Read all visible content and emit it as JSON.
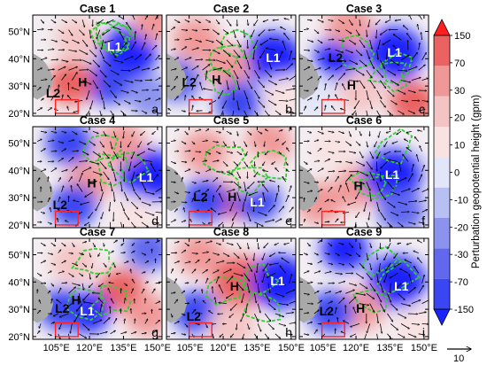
{
  "figure": {
    "colorbar_label": "Perturbation geopotential height (gpm)",
    "vector_key_label": "10"
  },
  "chart_data": {
    "type": "heatmap",
    "panels": [
      {
        "title": "Case 1",
        "letter": "a",
        "labels": [
          {
            "text": "L1",
            "lon": 131,
            "lat": 44,
            "color": "#ffffff"
          },
          {
            "text": "H",
            "lon": 117,
            "lat": 31,
            "color": "#000000"
          },
          {
            "text": "L2",
            "lon": 104,
            "lat": 27,
            "color": "#000000"
          }
        ],
        "blobs": [
          {
            "lon": 137,
            "lat": 42,
            "value": -150
          },
          {
            "lon": 128,
            "lat": 31,
            "value": -60
          },
          {
            "lon": 115,
            "lat": 47,
            "value": 30
          },
          {
            "lon": 112,
            "lat": 31,
            "value": 90
          },
          {
            "lon": 149,
            "lat": 54,
            "value": 60
          },
          {
            "lon": 147,
            "lat": 26,
            "value": -10
          }
        ]
      },
      {
        "title": "Case 2",
        "letter": "b",
        "labels": [
          {
            "text": "L1",
            "lon": 142,
            "lat": 40,
            "color": "#ffffff"
          },
          {
            "text": "H",
            "lon": 117,
            "lat": 32,
            "color": "#000000"
          },
          {
            "text": "L2",
            "lon": 105,
            "lat": 31,
            "color": "#000000"
          }
        ],
        "blobs": [
          {
            "lon": 142,
            "lat": 40,
            "value": -150
          },
          {
            "lon": 108,
            "lat": 47,
            "value": 60
          },
          {
            "lon": 122,
            "lat": 37,
            "value": 40
          },
          {
            "lon": 100,
            "lat": 32,
            "value": -20
          },
          {
            "lon": 127,
            "lat": 24,
            "value": -30
          },
          {
            "lon": 147,
            "lat": 26,
            "value": 20
          }
        ]
      },
      {
        "title": "Case 3",
        "letter": "c",
        "labels": [
          {
            "text": "L1",
            "lon": 137,
            "lat": 42,
            "color": "#ffffff"
          },
          {
            "text": "L2",
            "lon": 111,
            "lat": 40,
            "color": "#000000"
          },
          {
            "text": "H",
            "lon": 118,
            "lat": 30,
            "color": "#000000"
          }
        ],
        "blobs": [
          {
            "lon": 137,
            "lat": 42,
            "value": -150
          },
          {
            "lon": 112,
            "lat": 40,
            "value": -80
          },
          {
            "lon": 117,
            "lat": 52,
            "value": 60
          },
          {
            "lon": 122,
            "lat": 28,
            "value": 30
          },
          {
            "lon": 145,
            "lat": 24,
            "value": 80
          },
          {
            "lon": 102,
            "lat": 26,
            "value": 10
          }
        ]
      },
      {
        "title": "Case 4",
        "letter": "d",
        "labels": [
          {
            "text": "H",
            "lon": 121,
            "lat": 35,
            "color": "#000000"
          },
          {
            "text": "L1",
            "lon": 145,
            "lat": 37,
            "color": "#ffffff"
          },
          {
            "text": "L2",
            "lon": 107,
            "lat": 27,
            "color": "#000000"
          }
        ],
        "blobs": [
          {
            "lon": 120,
            "lat": 36,
            "value": 70
          },
          {
            "lon": 146,
            "lat": 38,
            "value": -150
          },
          {
            "lon": 113,
            "lat": 27,
            "value": -60
          },
          {
            "lon": 111,
            "lat": 50,
            "value": -50
          },
          {
            "lon": 134,
            "lat": 50,
            "value": 40
          },
          {
            "lon": 140,
            "lat": 23,
            "value": 20
          }
        ]
      },
      {
        "title": "Case 5",
        "letter": "e",
        "labels": [
          {
            "text": "H",
            "lon": 124,
            "lat": 30,
            "color": "#000000"
          },
          {
            "text": "L1",
            "lon": 135,
            "lat": 28,
            "color": "#ffffff"
          },
          {
            "text": "L2",
            "lon": 110,
            "lat": 30,
            "color": "#000000"
          }
        ],
        "blobs": [
          {
            "lon": 124,
            "lat": 30,
            "value": 80
          },
          {
            "lon": 135,
            "lat": 29,
            "value": -60
          },
          {
            "lon": 112,
            "lat": 29,
            "value": -40
          },
          {
            "lon": 112,
            "lat": 47,
            "value": 60
          },
          {
            "lon": 140,
            "lat": 50,
            "value": 70
          },
          {
            "lon": 130,
            "lat": 40,
            "value": 20
          }
        ]
      },
      {
        "title": "Case 6",
        "letter": "f",
        "labels": [
          {
            "text": "H",
            "lon": 121,
            "lat": 34,
            "color": "#000000"
          },
          {
            "text": "L1",
            "lon": 136,
            "lat": 38,
            "color": "#ffffff"
          }
        ],
        "blobs": [
          {
            "lon": 121,
            "lat": 34,
            "value": 60
          },
          {
            "lon": 136,
            "lat": 38,
            "value": -150
          },
          {
            "lon": 110,
            "lat": 48,
            "value": 20
          },
          {
            "lon": 140,
            "lat": 25,
            "value": -20
          },
          {
            "lon": 104,
            "lat": 28,
            "value": 40
          }
        ]
      },
      {
        "title": "Case 7",
        "letter": "g",
        "labels": [
          {
            "text": "H",
            "lon": 114,
            "lat": 33,
            "color": "#000000"
          },
          {
            "text": "L2",
            "lon": 108,
            "lat": 30,
            "color": "#000000"
          },
          {
            "text": "L1",
            "lon": 119,
            "lat": 29,
            "color": "#ffffff"
          }
        ],
        "blobs": [
          {
            "lon": 134,
            "lat": 37,
            "value": 80
          },
          {
            "lon": 119,
            "lat": 29,
            "value": -80
          },
          {
            "lon": 108,
            "lat": 30,
            "value": -30
          },
          {
            "lon": 113,
            "lat": 47,
            "value": 30
          },
          {
            "lon": 146,
            "lat": 52,
            "value": -20
          },
          {
            "lon": 146,
            "lat": 28,
            "value": 40
          }
        ]
      },
      {
        "title": "Case 8",
        "letter": "h",
        "labels": [
          {
            "text": "L1",
            "lon": 144,
            "lat": 40,
            "color": "#ffffff"
          },
          {
            "text": "H",
            "lon": 125,
            "lat": 38,
            "color": "#000000"
          },
          {
            "text": "L2",
            "lon": 107,
            "lat": 27,
            "color": "#000000"
          }
        ],
        "blobs": [
          {
            "lon": 128,
            "lat": 40,
            "value": 100
          },
          {
            "lon": 145,
            "lat": 40,
            "value": -150
          },
          {
            "lon": 108,
            "lat": 29,
            "value": -40
          },
          {
            "lon": 110,
            "lat": 50,
            "value": 50
          },
          {
            "lon": 124,
            "lat": 24,
            "value": 30
          }
        ]
      },
      {
        "title": "Case 9",
        "letter": "i",
        "labels": [
          {
            "text": "L1",
            "lon": 140,
            "lat": 38,
            "color": "#ffffff"
          },
          {
            "text": "H",
            "lon": 122,
            "lat": 30,
            "color": "#000000"
          },
          {
            "text": "L2",
            "lon": 107,
            "lat": 29,
            "color": "#000000"
          }
        ],
        "blobs": [
          {
            "lon": 138,
            "lat": 40,
            "value": -150
          },
          {
            "lon": 115,
            "lat": 52,
            "value": -80
          },
          {
            "lon": 122,
            "lat": 30,
            "value": 40
          },
          {
            "lon": 109,
            "lat": 29,
            "value": -30
          },
          {
            "lon": 147,
            "lat": 24,
            "value": 20
          }
        ]
      }
    ],
    "xlabels": [
      "105°E",
      "120°E",
      "135°E",
      "150°E"
    ],
    "xticks": [
      105,
      120,
      135,
      150
    ],
    "ylabels": [
      "20°N",
      "30°N",
      "40°N",
      "50°N"
    ],
    "yticks": [
      20,
      30,
      40,
      50
    ],
    "xlim": [
      95,
      152
    ],
    "ylim": [
      19,
      56
    ],
    "colorbar": {
      "ticks": [
        -150,
        -70,
        -30,
        -20,
        -10,
        0,
        10,
        20,
        30,
        70,
        150
      ],
      "tick_labels": [
        "-150",
        "-70",
        "-30",
        "-20",
        "-10",
        "0",
        "10",
        "20",
        "30",
        "70",
        "150"
      ],
      "colors": [
        "#1a22ff",
        "#3a46f2",
        "#6168ee",
        "#8b93ee",
        "#b8bff2",
        "#e2e6f8",
        "#f8e2e2",
        "#f4c4c4",
        "#f09898",
        "#ea6262",
        "#ff1f1f"
      ]
    },
    "plateau_color": "#a9a9a9",
    "contour_color": "#33cc33",
    "box_color": "#ff2222"
  }
}
